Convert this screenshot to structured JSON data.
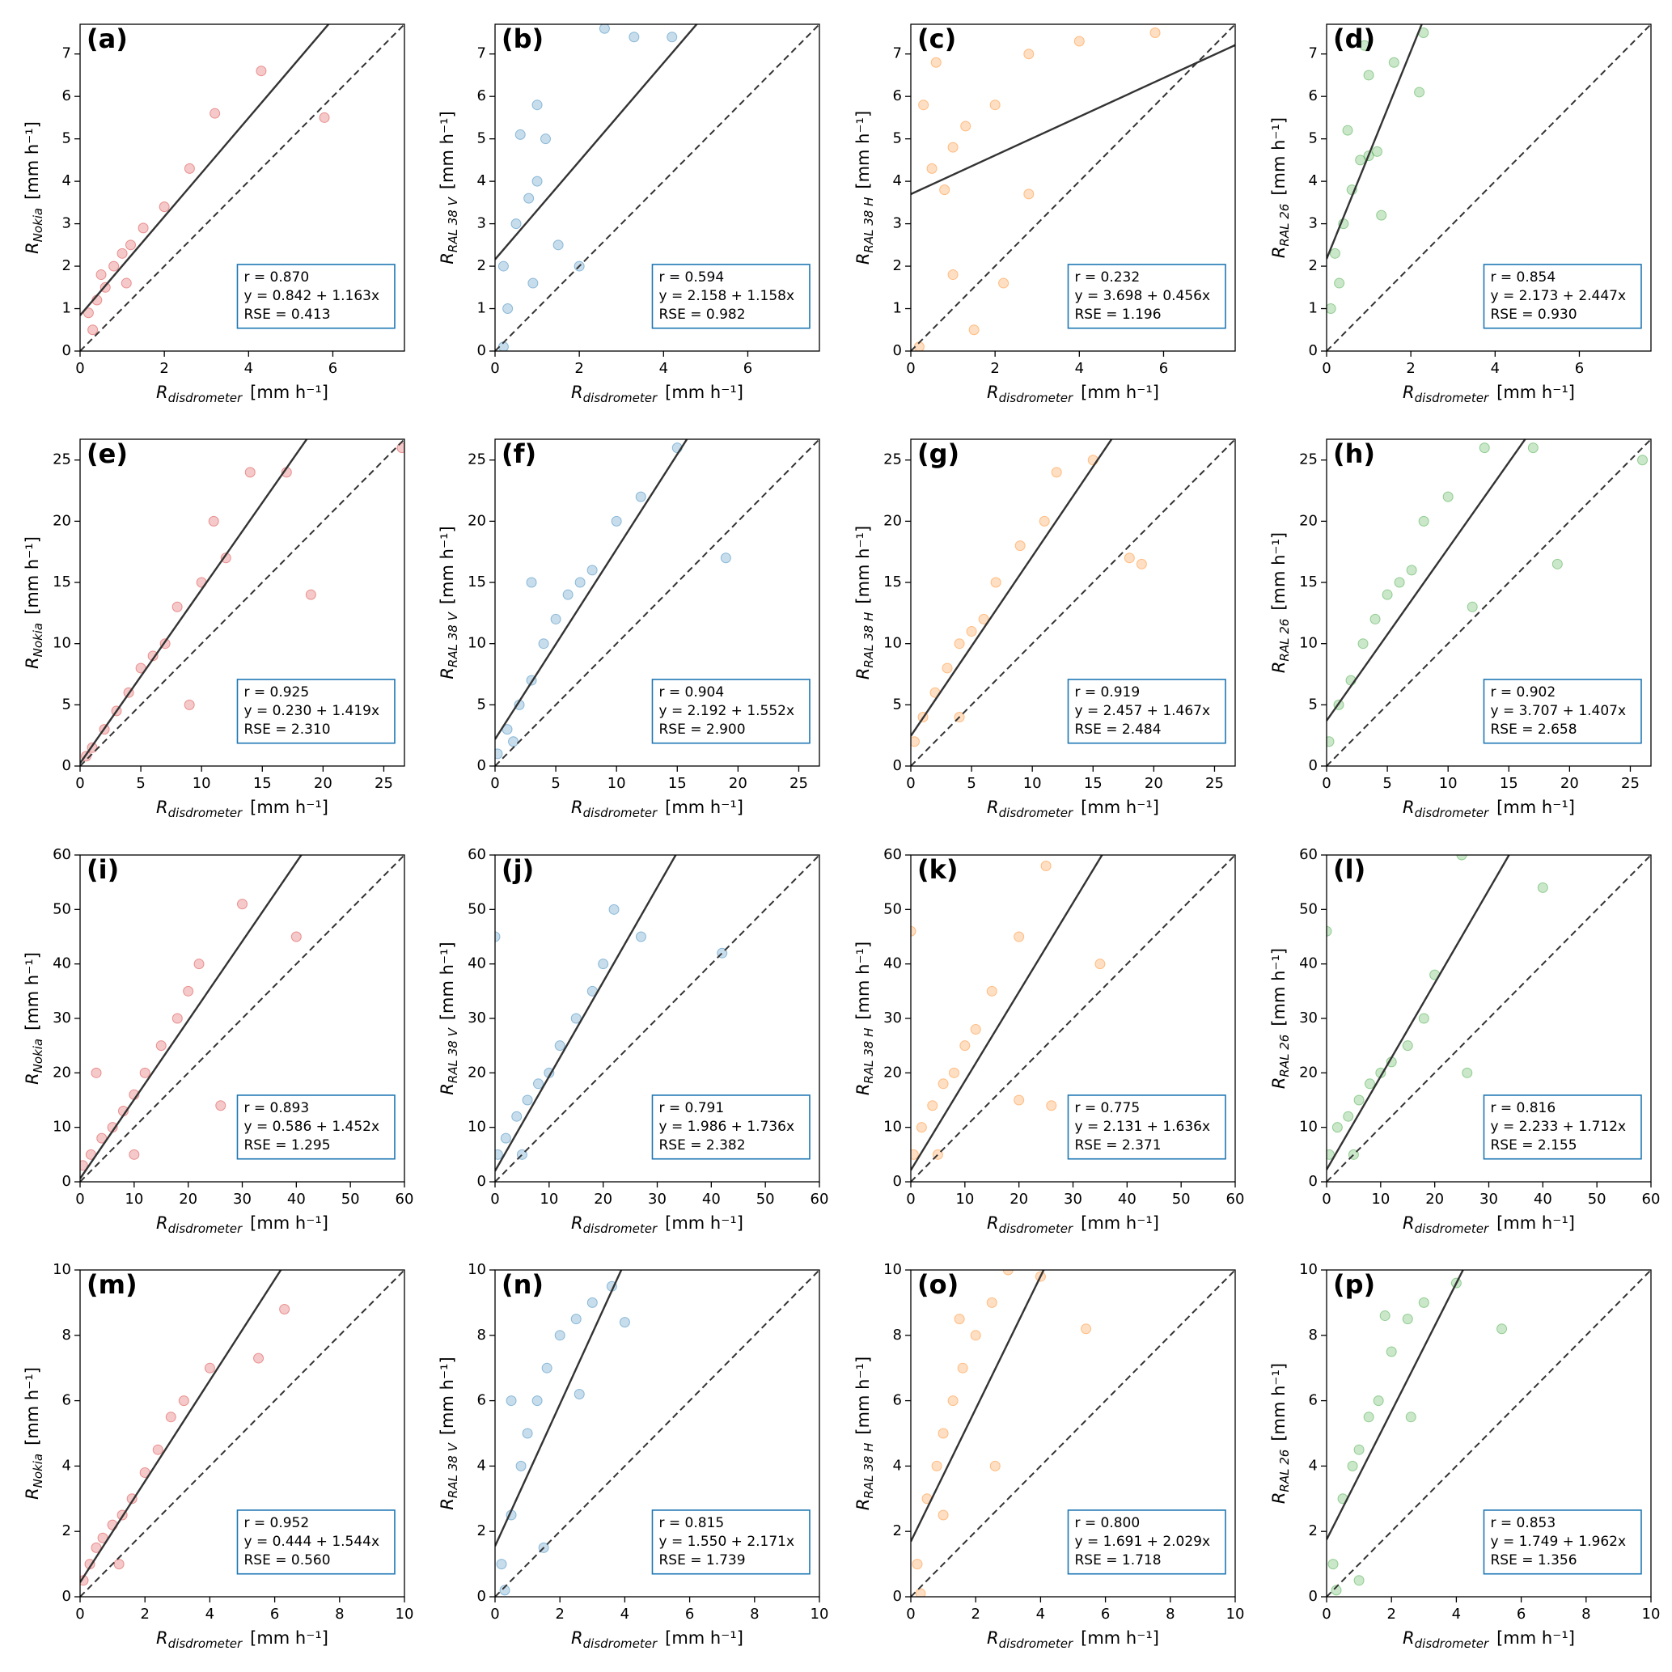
{
  "chart_data": [
    {
      "type": "scatter",
      "label": "(a)",
      "color": "#d62728",
      "xlabel": {
        "main": "R",
        "sub": "disdrometer",
        "unit": "[mm h⁻¹]"
      },
      "ylabel": {
        "main": "R",
        "sub": "Nokia",
        "unit": "[mm h⁻¹]"
      },
      "xlim": [
        0,
        7.7
      ],
      "ylim": [
        0,
        7.7
      ],
      "xticks": [
        0,
        2,
        4,
        6
      ],
      "yticks": [
        0,
        1,
        2,
        3,
        4,
        5,
        6,
        7
      ],
      "fit": {
        "intercept": 0.842,
        "slope": 1.163
      },
      "annotation": [
        "r = 0.870",
        "y = 0.842 + 1.163x",
        "RSE = 0.413"
      ],
      "x": [
        0.2,
        0.4,
        0.6,
        0.8,
        1.0,
        1.2,
        0.5,
        1.5,
        2.0,
        2.6,
        3.2,
        4.3,
        5.8,
        0.3,
        1.1
      ],
      "y": [
        0.9,
        1.2,
        1.5,
        2.0,
        2.3,
        2.5,
        1.8,
        2.9,
        3.4,
        4.3,
        5.6,
        6.6,
        5.5,
        0.5,
        1.6
      ]
    },
    {
      "type": "scatter",
      "label": "(b)",
      "color": "#1f77b4",
      "xlabel": {
        "main": "R",
        "sub": "disdrometer",
        "unit": "[mm h⁻¹]"
      },
      "ylabel": {
        "main": "R",
        "sub": "RAL 38 V",
        "unit": "[mm h⁻¹]"
      },
      "xlim": [
        0,
        7.7
      ],
      "ylim": [
        0,
        7.7
      ],
      "xticks": [
        0,
        2,
        4,
        6
      ],
      "yticks": [
        0,
        1,
        2,
        3,
        4,
        5,
        6,
        7
      ],
      "fit": {
        "intercept": 2.158,
        "slope": 1.158
      },
      "annotation": [
        "r = 0.594",
        "y = 2.158 + 1.158x",
        "RSE = 0.982"
      ],
      "x": [
        0.2,
        0.5,
        0.8,
        1.0,
        0.6,
        1.2,
        0.3,
        1.5,
        2.0,
        2.6,
        3.3,
        4.2,
        1.0,
        0.9,
        0.2
      ],
      "y": [
        2.0,
        3.0,
        3.6,
        4.0,
        5.1,
        5.0,
        1.0,
        2.5,
        2.0,
        7.6,
        7.4,
        7.4,
        5.8,
        1.6,
        0.1
      ]
    },
    {
      "type": "scatter",
      "label": "(c)",
      "color": "#ff7f0e",
      "xlabel": {
        "main": "R",
        "sub": "disdrometer",
        "unit": "[mm h⁻¹]"
      },
      "ylabel": {
        "main": "R",
        "sub": "RAL 38 H",
        "unit": "[mm h⁻¹]"
      },
      "xlim": [
        0,
        7.7
      ],
      "ylim": [
        0,
        7.7
      ],
      "xticks": [
        0,
        2,
        4,
        6
      ],
      "yticks": [
        0,
        1,
        2,
        3,
        4,
        5,
        6,
        7
      ],
      "fit": {
        "intercept": 3.698,
        "slope": 0.456
      },
      "annotation": [
        "r = 0.232",
        "y = 3.698 + 0.456x",
        "RSE = 1.196"
      ],
      "x": [
        0.5,
        1.0,
        0.8,
        1.3,
        0.3,
        0.6,
        2.0,
        2.8,
        4.0,
        5.8,
        1.0,
        2.2,
        0.2,
        1.5,
        2.8
      ],
      "y": [
        4.3,
        4.8,
        3.8,
        5.3,
        5.8,
        6.8,
        5.8,
        7.0,
        7.3,
        7.5,
        1.8,
        1.6,
        0.1,
        0.5,
        3.7
      ]
    },
    {
      "type": "scatter",
      "label": "(d)",
      "color": "#2ca02c",
      "xlabel": {
        "main": "R",
        "sub": "disdrometer",
        "unit": "[mm h⁻¹]"
      },
      "ylabel": {
        "main": "R",
        "sub": "RAL 26",
        "unit": "[mm h⁻¹]"
      },
      "xlim": [
        0,
        7.7
      ],
      "ylim": [
        0,
        7.7
      ],
      "xticks": [
        0,
        2,
        4,
        6
      ],
      "yticks": [
        0,
        1,
        2,
        3,
        4,
        5,
        6,
        7
      ],
      "fit": {
        "intercept": 2.173,
        "slope": 2.447
      },
      "annotation": [
        "r = 0.854",
        "y = 2.173 + 2.447x",
        "RSE = 0.930"
      ],
      "x": [
        0.2,
        0.4,
        0.6,
        0.8,
        1.0,
        1.2,
        0.5,
        1.0,
        1.6,
        2.2,
        2.3,
        0.1,
        0.3,
        1.3,
        0.9
      ],
      "y": [
        2.3,
        3.0,
        3.8,
        4.5,
        4.6,
        4.7,
        5.2,
        6.5,
        6.8,
        6.1,
        7.5,
        1.0,
        1.6,
        3.2,
        7.2
      ]
    },
    {
      "type": "scatter",
      "label": "(e)",
      "color": "#d62728",
      "xlabel": {
        "main": "R",
        "sub": "disdrometer",
        "unit": "[mm h⁻¹]"
      },
      "ylabel": {
        "main": "R",
        "sub": "Nokia",
        "unit": "[mm h⁻¹]"
      },
      "xlim": [
        0,
        26.7
      ],
      "ylim": [
        0,
        26.7
      ],
      "xticks": [
        0,
        5,
        10,
        15,
        20,
        25
      ],
      "yticks": [
        0,
        5,
        10,
        15,
        20,
        25
      ],
      "fit": {
        "intercept": 0.23,
        "slope": 1.419
      },
      "annotation": [
        "r = 0.925",
        "y = 0.230 + 1.419x",
        "RSE = 2.310"
      ],
      "x": [
        0.5,
        1,
        2,
        3,
        4,
        5,
        6,
        7,
        8,
        10,
        12,
        14,
        17,
        19,
        26.5,
        9,
        11
      ],
      "y": [
        0.8,
        1.5,
        3,
        4.5,
        6,
        8,
        9,
        10,
        13,
        15,
        17,
        24,
        24,
        14,
        26,
        5,
        20
      ]
    },
    {
      "type": "scatter",
      "label": "(f)",
      "color": "#1f77b4",
      "xlabel": {
        "main": "R",
        "sub": "disdrometer",
        "unit": "[mm h⁻¹]"
      },
      "ylabel": {
        "main": "R",
        "sub": "RAL 38 V",
        "unit": "[mm h⁻¹]"
      },
      "xlim": [
        0,
        26.7
      ],
      "ylim": [
        0,
        26.7
      ],
      "xticks": [
        0,
        5,
        10,
        15,
        20,
        25
      ],
      "yticks": [
        0,
        5,
        10,
        15,
        20,
        25
      ],
      "fit": {
        "intercept": 2.192,
        "slope": 1.552
      },
      "annotation": [
        "r = 0.904",
        "y = 2.192 + 1.552x",
        "RSE = 2.900"
      ],
      "x": [
        0.2,
        1,
        2,
        3,
        4,
        5,
        6,
        7,
        8,
        10,
        12,
        15,
        19,
        3,
        1.5
      ],
      "y": [
        1,
        3,
        5,
        7,
        10,
        12,
        14,
        15,
        16,
        20,
        22,
        26,
        17,
        15,
        2
      ]
    },
    {
      "type": "scatter",
      "label": "(g)",
      "color": "#ff7f0e",
      "xlabel": {
        "main": "R",
        "sub": "disdrometer",
        "unit": "[mm h⁻¹]"
      },
      "ylabel": {
        "main": "R",
        "sub": "RAL 38 H",
        "unit": "[mm h⁻¹]"
      },
      "xlim": [
        0,
        26.7
      ],
      "ylim": [
        0,
        26.7
      ],
      "xticks": [
        0,
        5,
        10,
        15,
        20,
        25
      ],
      "yticks": [
        0,
        5,
        10,
        15,
        20,
        25
      ],
      "fit": {
        "intercept": 2.457,
        "slope": 1.467
      },
      "annotation": [
        "r = 0.919",
        "y = 2.457 + 1.467x",
        "RSE = 2.484"
      ],
      "x": [
        0.3,
        1,
        2,
        3,
        4,
        5,
        6,
        7,
        9,
        11,
        12,
        15,
        18,
        19,
        4
      ],
      "y": [
        2,
        4,
        6,
        8,
        10,
        11,
        12,
        15,
        18,
        20,
        24,
        25,
        17,
        16.5,
        4
      ]
    },
    {
      "type": "scatter",
      "label": "(h)",
      "color": "#2ca02c",
      "xlabel": {
        "main": "R",
        "sub": "disdrometer",
        "unit": "[mm h⁻¹]"
      },
      "ylabel": {
        "main": "R",
        "sub": "RAL 26",
        "unit": "[mm h⁻¹]"
      },
      "xlim": [
        0,
        26.7
      ],
      "ylim": [
        0,
        26.7
      ],
      "xticks": [
        0,
        5,
        10,
        15,
        20,
        25
      ],
      "yticks": [
        0,
        5,
        10,
        15,
        20,
        25
      ],
      "fit": {
        "intercept": 3.707,
        "slope": 1.407
      },
      "annotation": [
        "r = 0.902",
        "y = 3.707 + 1.407x",
        "RSE = 2.658"
      ],
      "x": [
        0.2,
        1,
        2,
        3,
        4,
        5,
        6,
        7,
        8,
        10,
        13,
        17,
        19,
        26,
        12
      ],
      "y": [
        2,
        5,
        7,
        10,
        12,
        14,
        15,
        16,
        20,
        22,
        26,
        26,
        16.5,
        25,
        13
      ]
    },
    {
      "type": "scatter",
      "label": "(i)",
      "color": "#d62728",
      "xlabel": {
        "main": "R",
        "sub": "disdrometer",
        "unit": "[mm h⁻¹]"
      },
      "ylabel": {
        "main": "R",
        "sub": "Nokia",
        "unit": "[mm h⁻¹]"
      },
      "xlim": [
        0,
        60
      ],
      "ylim": [
        0,
        60
      ],
      "xticks": [
        0,
        10,
        20,
        30,
        40,
        50,
        60
      ],
      "yticks": [
        0,
        10,
        20,
        30,
        40,
        50,
        60
      ],
      "fit": {
        "intercept": 0.586,
        "slope": 1.452
      },
      "annotation": [
        "r = 0.893",
        "y = 0.586 + 1.452x",
        "RSE = 1.295"
      ],
      "x": [
        0.5,
        2,
        4,
        6,
        8,
        10,
        12,
        15,
        18,
        20,
        22,
        30,
        40,
        26,
        3,
        10
      ],
      "y": [
        3,
        5,
        8,
        10,
        13,
        16,
        20,
        25,
        30,
        35,
        40,
        51,
        45,
        14,
        20,
        5
      ]
    },
    {
      "type": "scatter",
      "label": "(j)",
      "color": "#1f77b4",
      "xlabel": {
        "main": "R",
        "sub": "disdrometer",
        "unit": "[mm h⁻¹]"
      },
      "ylabel": {
        "main": "R",
        "sub": "RAL 38 V",
        "unit": "[mm h⁻¹]"
      },
      "xlim": [
        0,
        60
      ],
      "ylim": [
        0,
        60
      ],
      "xticks": [
        0,
        10,
        20,
        30,
        40,
        50,
        60
      ],
      "yticks": [
        0,
        10,
        20,
        30,
        40,
        50,
        60
      ],
      "fit": {
        "intercept": 1.986,
        "slope": 1.736
      },
      "annotation": [
        "r = 0.791",
        "y = 1.986 + 1.736x",
        "RSE = 2.382"
      ],
      "x": [
        0.5,
        2,
        4,
        6,
        8,
        10,
        12,
        15,
        18,
        20,
        22,
        27,
        42,
        30,
        0,
        5
      ],
      "y": [
        5,
        8,
        12,
        15,
        18,
        20,
        25,
        30,
        35,
        40,
        50,
        45,
        42,
        15,
        45,
        5
      ]
    },
    {
      "type": "scatter",
      "label": "(k)",
      "color": "#ff7f0e",
      "xlabel": {
        "main": "R",
        "sub": "disdrometer",
        "unit": "[mm h⁻¹]"
      },
      "ylabel": {
        "main": "R",
        "sub": "RAL 38 H",
        "unit": "[mm h⁻¹]"
      },
      "xlim": [
        0,
        60
      ],
      "ylim": [
        0,
        60
      ],
      "xticks": [
        0,
        10,
        20,
        30,
        40,
        50,
        60
      ],
      "yticks": [
        0,
        10,
        20,
        30,
        40,
        50,
        60
      ],
      "fit": {
        "intercept": 2.131,
        "slope": 1.636
      },
      "annotation": [
        "r = 0.775",
        "y = 2.131 + 1.636x",
        "RSE = 2.371"
      ],
      "x": [
        0.5,
        2,
        4,
        6,
        8,
        10,
        12,
        15,
        20,
        25,
        20,
        35,
        0,
        26,
        5
      ],
      "y": [
        5,
        10,
        14,
        18,
        20,
        25,
        28,
        35,
        45,
        58,
        15,
        40,
        46,
        14,
        5
      ]
    },
    {
      "type": "scatter",
      "label": "(l)",
      "color": "#2ca02c",
      "xlabel": {
        "main": "R",
        "sub": "disdrometer",
        "unit": "[mm h⁻¹]"
      },
      "ylabel": {
        "main": "R",
        "sub": "RAL 26",
        "unit": "[mm h⁻¹]"
      },
      "xlim": [
        0,
        60
      ],
      "ylim": [
        0,
        60
      ],
      "xticks": [
        0,
        10,
        20,
        30,
        40,
        50,
        60
      ],
      "yticks": [
        0,
        10,
        20,
        30,
        40,
        50,
        60
      ],
      "fit": {
        "intercept": 2.233,
        "slope": 1.712
      },
      "annotation": [
        "r = 0.816",
        "y = 2.233 + 1.712x",
        "RSE = 2.155"
      ],
      "x": [
        0.5,
        2,
        4,
        6,
        8,
        10,
        12,
        15,
        18,
        20,
        25,
        40,
        0,
        26,
        5
      ],
      "y": [
        5,
        10,
        12,
        15,
        18,
        20,
        22,
        25,
        30,
        38,
        60,
        54,
        46,
        20,
        5
      ]
    },
    {
      "type": "scatter",
      "label": "(m)",
      "color": "#d62728",
      "xlabel": {
        "main": "R",
        "sub": "disdrometer",
        "unit": "[mm h⁻¹]"
      },
      "ylabel": {
        "main": "R",
        "sub": "Nokia",
        "unit": "[mm h⁻¹]"
      },
      "xlim": [
        0,
        10
      ],
      "ylim": [
        0,
        10
      ],
      "xticks": [
        0,
        2,
        4,
        6,
        8,
        10
      ],
      "yticks": [
        0,
        2,
        4,
        6,
        8,
        10
      ],
      "fit": {
        "intercept": 0.444,
        "slope": 1.544
      },
      "annotation": [
        "r = 0.952",
        "y = 0.444 + 1.544x",
        "RSE = 0.560"
      ],
      "x": [
        0.1,
        0.3,
        0.5,
        0.7,
        1.0,
        1.3,
        1.6,
        2.0,
        2.4,
        2.8,
        3.2,
        4.0,
        5.5,
        6.3,
        1.2
      ],
      "y": [
        0.5,
        1.0,
        1.5,
        1.8,
        2.2,
        2.5,
        3.0,
        3.8,
        4.5,
        5.5,
        6.0,
        7.0,
        7.3,
        8.8,
        1.0
      ]
    },
    {
      "type": "scatter",
      "label": "(n)",
      "color": "#1f77b4",
      "xlabel": {
        "main": "R",
        "sub": "disdrometer",
        "unit": "[mm h⁻¹]"
      },
      "ylabel": {
        "main": "R",
        "sub": "RAL 38 V",
        "unit": "[mm h⁻¹]"
      },
      "xlim": [
        0,
        10
      ],
      "ylim": [
        0,
        10
      ],
      "xticks": [
        0,
        2,
        4,
        6,
        8,
        10
      ],
      "yticks": [
        0,
        2,
        4,
        6,
        8,
        10
      ],
      "fit": {
        "intercept": 1.55,
        "slope": 2.171
      },
      "annotation": [
        "r = 0.815",
        "y = 1.550 + 2.171x",
        "RSE = 1.739"
      ],
      "x": [
        0.2,
        0.5,
        0.8,
        1.0,
        1.3,
        1.6,
        2,
        2.5,
        3,
        3.6,
        0.5,
        0.3,
        1.5,
        2.6,
        4.0
      ],
      "y": [
        1,
        2.5,
        4,
        5,
        6,
        7,
        8,
        8.5,
        9,
        9.5,
        6,
        0.2,
        1.5,
        6.2,
        8.4
      ]
    },
    {
      "type": "scatter",
      "label": "(o)",
      "color": "#ff7f0e",
      "xlabel": {
        "main": "R",
        "sub": "disdrometer",
        "unit": "[mm h⁻¹]"
      },
      "ylabel": {
        "main": "R",
        "sub": "RAL 38 H",
        "unit": "[mm h⁻¹]"
      },
      "xlim": [
        0,
        10
      ],
      "ylim": [
        0,
        10
      ],
      "xticks": [
        0,
        2,
        4,
        6,
        8,
        10
      ],
      "yticks": [
        0,
        2,
        4,
        6,
        8,
        10
      ],
      "fit": {
        "intercept": 1.691,
        "slope": 2.029
      },
      "annotation": [
        "r = 0.800",
        "y = 1.691 + 2.029x",
        "RSE = 1.718"
      ],
      "x": [
        0.2,
        0.5,
        0.8,
        1.0,
        1.3,
        1.6,
        2,
        2.5,
        3,
        4.0,
        5.4,
        0.3,
        1.0,
        2.6,
        1.5
      ],
      "y": [
        1,
        3,
        4,
        5,
        6,
        7,
        8,
        9,
        10,
        9.8,
        8.2,
        0.1,
        2.5,
        4,
        8.5
      ]
    },
    {
      "type": "scatter",
      "label": "(p)",
      "color": "#2ca02c",
      "xlabel": {
        "main": "R",
        "sub": "disdrometer",
        "unit": "[mm h⁻¹]"
      },
      "ylabel": {
        "main": "R",
        "sub": "RAL 26",
        "unit": "[mm h⁻¹]"
      },
      "xlim": [
        0,
        10
      ],
      "ylim": [
        0,
        10
      ],
      "xticks": [
        0,
        2,
        4,
        6,
        8,
        10
      ],
      "yticks": [
        0,
        2,
        4,
        6,
        8,
        10
      ],
      "fit": {
        "intercept": 1.749,
        "slope": 1.962
      },
      "annotation": [
        "r = 0.853",
        "y = 1.749 + 1.962x",
        "RSE = 1.356"
      ],
      "x": [
        0.2,
        0.5,
        0.8,
        1.0,
        1.3,
        1.6,
        2,
        2.5,
        3,
        4,
        5.4,
        0.3,
        1,
        2.6,
        1.8
      ],
      "y": [
        1,
        3,
        4,
        4.5,
        5.5,
        6,
        7.5,
        8.5,
        9,
        9.6,
        8.2,
        0.2,
        0.5,
        5.5,
        8.6
      ]
    }
  ]
}
